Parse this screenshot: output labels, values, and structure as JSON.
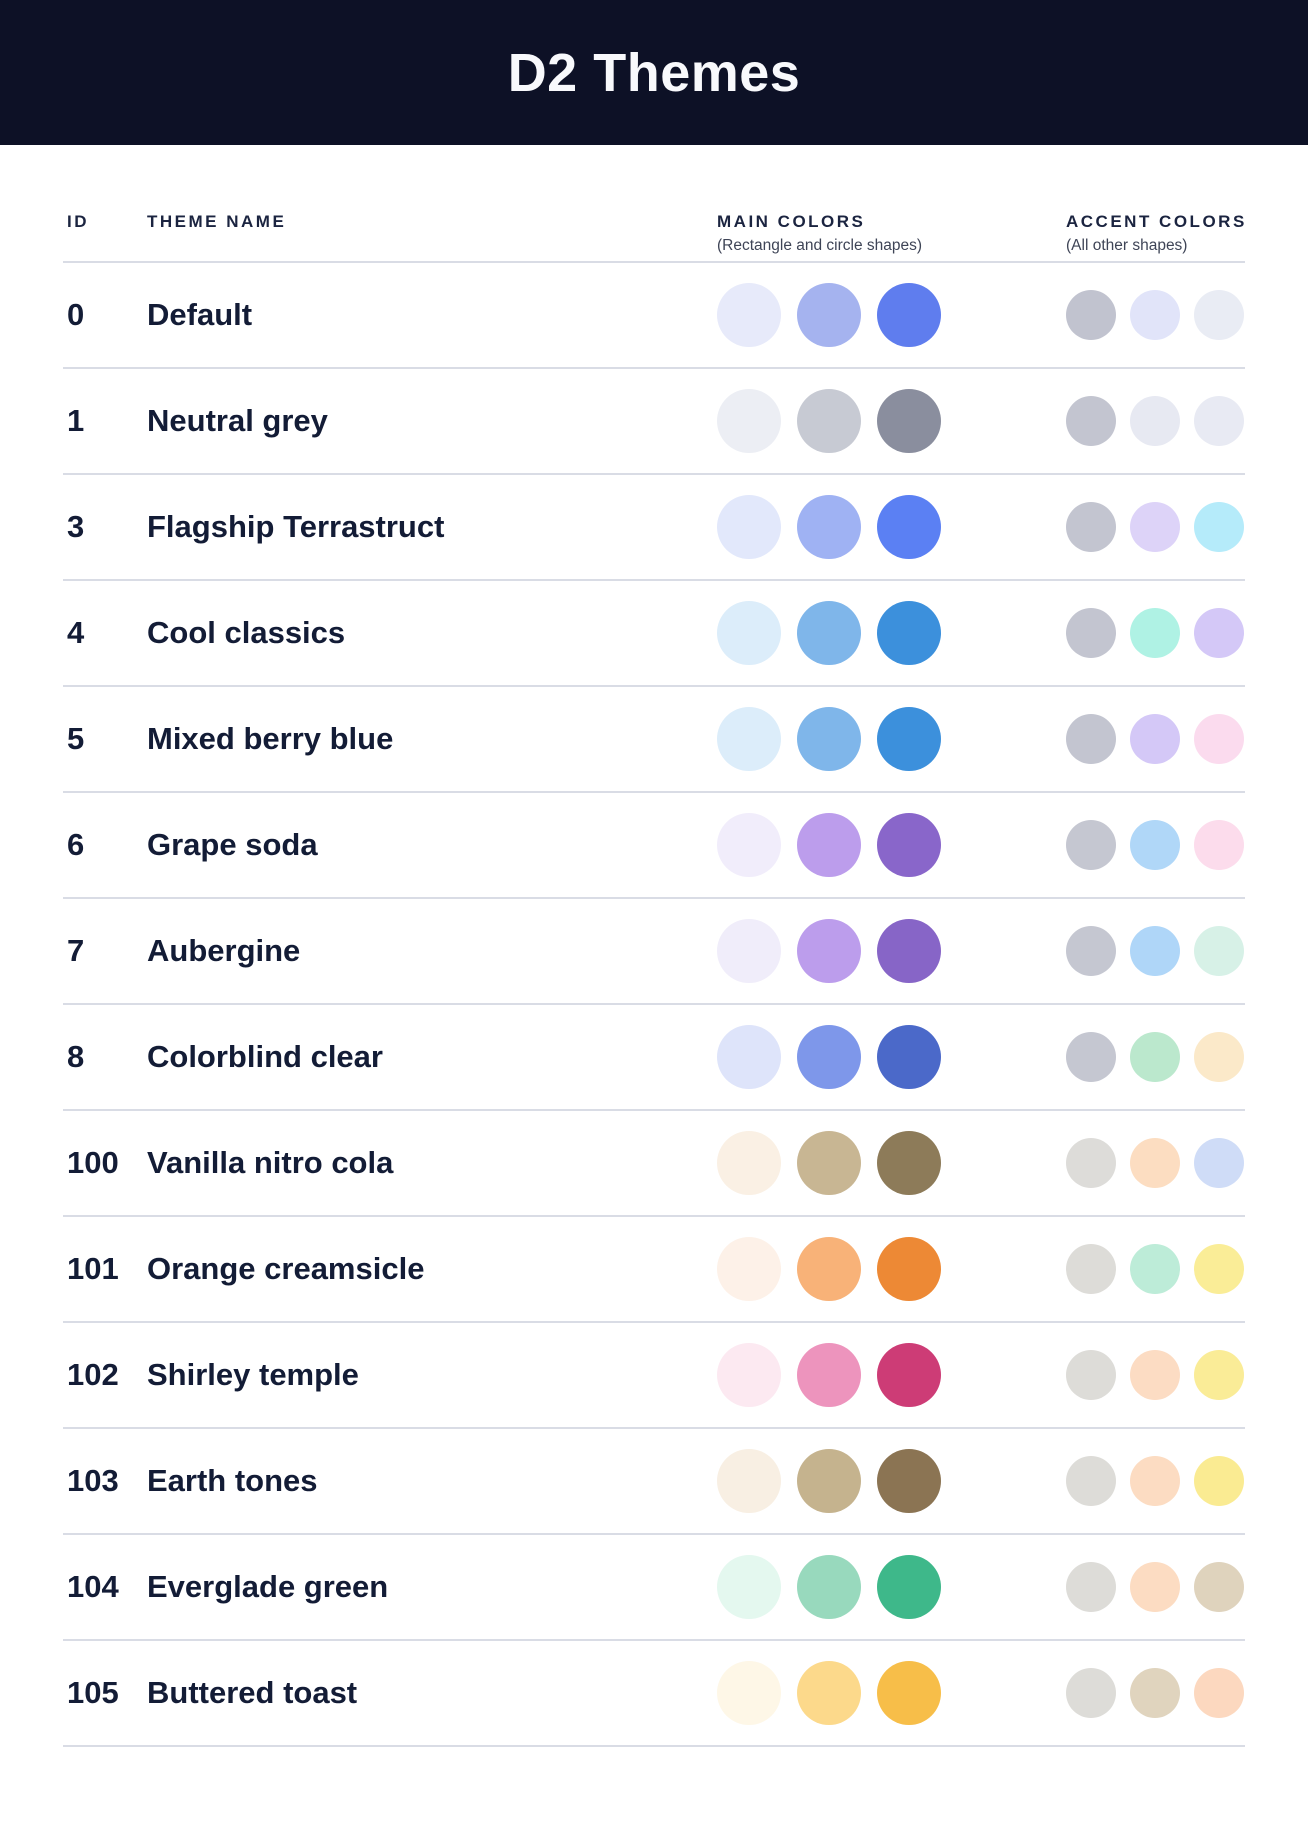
{
  "page": {
    "background": "#FFFFFF",
    "header_bg": "#0D1126",
    "divider_color": "#D9DCE5",
    "text_dark": "#131C36"
  },
  "header": {
    "title": "D2 Themes"
  },
  "table": {
    "columns": {
      "id": "ID",
      "theme_name": "THEME NAME",
      "main_colors": "MAIN COLORS",
      "main_colors_sub": "(Rectangle and circle shapes)",
      "accent_colors": "ACCENT COLORS",
      "accent_colors_sub": "(All other shapes)"
    },
    "rows": [
      {
        "id": "0",
        "name": "Default",
        "main": [
          "#E7EAFA",
          "#A5B3EF",
          "#5F7DEE"
        ],
        "accent": [
          "#C1C3CF",
          "#E1E4F9",
          "#E9ECF4"
        ]
      },
      {
        "id": "1",
        "name": "Neutral grey",
        "main": [
          "#ECEEF4",
          "#C7CAD3",
          "#8A8E9E"
        ],
        "accent": [
          "#C3C5D0",
          "#E7E9F2",
          "#E8EAF3"
        ]
      },
      {
        "id": "3",
        "name": "Flagship Terrastruct",
        "main": [
          "#E2E8FB",
          "#9FB2F3",
          "#5B80F3"
        ],
        "accent": [
          "#C3C5D0",
          "#DDD3F8",
          "#B5EBFA"
        ]
      },
      {
        "id": "4",
        "name": "Cool classics",
        "main": [
          "#DCEDFA",
          "#7FB6EA",
          "#3C90DC"
        ],
        "accent": [
          "#C3C5D0",
          "#AFF2E4",
          "#D4C8F7"
        ]
      },
      {
        "id": "5",
        "name": "Mixed berry blue",
        "main": [
          "#DCEDFA",
          "#7FB6EA",
          "#3C90DC"
        ],
        "accent": [
          "#C3C5D0",
          "#D4C8F7",
          "#FBDBEE"
        ]
      },
      {
        "id": "6",
        "name": "Grape soda",
        "main": [
          "#F1EDFB",
          "#BC9DEC",
          "#8966CA"
        ],
        "accent": [
          "#C5C7D1",
          "#B0D7F8",
          "#FCDCEC"
        ]
      },
      {
        "id": "7",
        "name": "Aubergine",
        "main": [
          "#F0EDFA",
          "#BC9DEC",
          "#8765C7"
        ],
        "accent": [
          "#C5C7D1",
          "#AFD6F8",
          "#D7F1E7"
        ]
      },
      {
        "id": "8",
        "name": "Colorblind clear",
        "main": [
          "#DEE4FA",
          "#7E97EA",
          "#4B69C9"
        ],
        "accent": [
          "#C5C7D1",
          "#BBE8CD",
          "#FBE9C9"
        ]
      },
      {
        "id": "100",
        "name": "Vanilla nitro cola",
        "main": [
          "#FAF0E4",
          "#C8B693",
          "#8D7B59"
        ],
        "accent": [
          "#DDDCD9",
          "#FCDDC1",
          "#CFDCF7"
        ]
      },
      {
        "id": "101",
        "name": "Orange creamsicle",
        "main": [
          "#FDF1E8",
          "#F8B278",
          "#ED8935"
        ],
        "accent": [
          "#DDDCD8",
          "#BDECD8",
          "#FAED97"
        ]
      },
      {
        "id": "102",
        "name": "Shirley temple",
        "main": [
          "#FCE9F1",
          "#ED94BD",
          "#CD3C76"
        ],
        "accent": [
          "#DDDCD8",
          "#FCDCC3",
          "#FAEC97"
        ]
      },
      {
        "id": "103",
        "name": "Earth tones",
        "main": [
          "#F8EFE3",
          "#C5B38E",
          "#8B7453"
        ],
        "accent": [
          "#DDDCD8",
          "#FCDCC2",
          "#FAEB92"
        ]
      },
      {
        "id": "104",
        "name": "Everglade green",
        "main": [
          "#E4F8EF",
          "#98D9BD",
          "#3EB88A"
        ],
        "accent": [
          "#DDDCD8",
          "#FCDCC2",
          "#DFD3BD"
        ]
      },
      {
        "id": "105",
        "name": "Buttered toast",
        "main": [
          "#FEF7E7",
          "#FCD98B",
          "#F7BE49"
        ],
        "accent": [
          "#DDDCD8",
          "#E0D4BE",
          "#FCD8BF"
        ]
      }
    ]
  }
}
